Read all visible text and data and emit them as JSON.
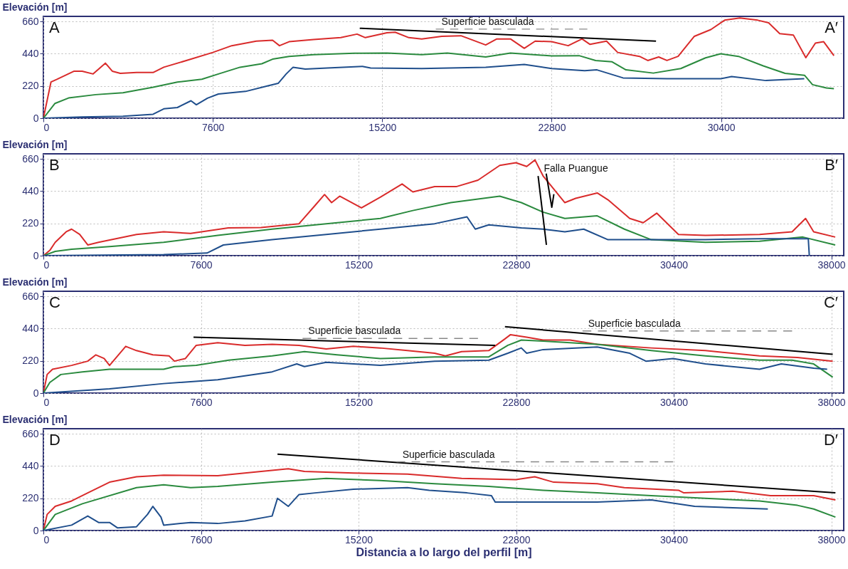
{
  "chart_data": [
    {
      "type": "line",
      "ylabel": "Elevación [m]",
      "xlim": [
        0,
        35900
      ],
      "xticks": [
        0,
        7600,
        15200,
        22800,
        30400
      ],
      "ylim": [
        0,
        695
      ],
      "yticks": [
        0,
        220,
        440,
        660
      ],
      "grid": true,
      "series": [
        {
          "color": "#d92b2b",
          "x": [
            0,
            340,
            590,
            1380,
            1740,
            2230,
            2780,
            3090,
            3450,
            4180,
            4920,
            5400,
            6620,
            7600,
            8450,
            9550,
            10280,
            10590,
            11020,
            12120,
            13340,
            14070,
            14440,
            15410,
            15780,
            16390,
            16970,
            17870,
            18730,
            19840,
            20340,
            20950,
            21570,
            22060,
            22800,
            23540,
            24160,
            24520,
            25260,
            25760,
            26740,
            27110,
            27600,
            27970,
            28470,
            29200,
            29940,
            30560,
            31240,
            32040,
            32530,
            33030,
            33640,
            34200,
            34630,
            35000,
            35460
          ],
          "values": [
            0,
            247,
            264,
            321,
            321,
            302,
            376,
            321,
            306,
            312,
            312,
            348,
            403,
            449,
            495,
            526,
            532,
            495,
            522,
            537,
            550,
            574,
            550,
            583,
            587,
            550,
            541,
            559,
            563,
            500,
            541,
            541,
            477,
            526,
            522,
            495,
            541,
            504,
            526,
            449,
            422,
            394,
            418,
            394,
            422,
            559,
            605,
            669,
            684,
            669,
            651,
            577,
            568,
            413,
            513,
            522,
            427
          ]
        },
        {
          "color": "#2a8a3e",
          "x": [
            0,
            520,
            1130,
            2350,
            3570,
            4920,
            6010,
            7110,
            7850,
            8820,
            9800,
            10280,
            11020,
            12120,
            13950,
            15410,
            16970,
            18120,
            19840,
            20950,
            22800,
            24030,
            24770,
            25510,
            26130,
            27360,
            28590,
            29700,
            30380,
            31180,
            32290,
            33270,
            34140,
            34500,
            35120,
            35460
          ],
          "values": [
            0,
            101,
            138,
            161,
            174,
            211,
            247,
            266,
            302,
            348,
            372,
            403,
            422,
            434,
            443,
            445,
            434,
            445,
            418,
            445,
            425,
            427,
            394,
            385,
            330,
            308,
            339,
            412,
            440,
            422,
            357,
            306,
            293,
            229,
            207,
            202
          ]
        },
        {
          "color": "#1f4e8c",
          "x": [
            0,
            1740,
            3570,
            4920,
            5400,
            6010,
            6620,
            6860,
            7360,
            7850,
            9070,
            10040,
            10530,
            10890,
            11200,
            11750,
            12730,
            14310,
            14680,
            16970,
            19840,
            21570,
            22800,
            24280,
            24830,
            26000,
            27970,
            30400,
            30870,
            32410,
            34130
          ],
          "values": [
            0,
            9,
            13,
            27,
            64,
            73,
            119,
            92,
            137,
            165,
            183,
            220,
            238,
            302,
            348,
            335,
            343,
            354,
            343,
            339,
            348,
            367,
            339,
            324,
            330,
            275,
            270,
            270,
            284,
            257,
            270
          ]
        },
        {
          "color": "#000000",
          "x": [
            14190,
            27480
          ],
          "values": [
            614,
            526
          ]
        },
        {
          "name": "Superficie basculada",
          "color": "#888888",
          "line_style": "dashed",
          "x": [
            17600,
            24400
          ],
          "values": [
            608,
            608
          ]
        }
      ],
      "annotations": [
        "A",
        "A′"
      ]
    },
    {
      "type": "line",
      "ylabel": "Elevación [m]",
      "xlim": [
        0,
        38600
      ],
      "xticks": [
        0,
        7600,
        15200,
        22800,
        30400,
        38000
      ],
      "ylim": [
        0,
        695
      ],
      "yticks": [
        0,
        220,
        440,
        660
      ],
      "grid": true,
      "series": [
        {
          "color": "#d92b2b",
          "x": [
            0,
            310,
            570,
            1100,
            1360,
            1750,
            2140,
            2660,
            4490,
            5800,
            7100,
            8920,
            10500,
            12330,
            13110,
            13560,
            13900,
            14290,
            15340,
            16250,
            17300,
            17820,
            18870,
            19910,
            20960,
            22010,
            22790,
            23310,
            23710,
            24100,
            25150,
            25670,
            26710,
            27230,
            28280,
            28930,
            29580,
            30630,
            31930,
            34540,
            36110,
            36760,
            37150,
            38190
          ],
          "values": [
            0,
            36,
            91,
            163,
            181,
            145,
            73,
            91,
            145,
            163,
            152,
            189,
            192,
            218,
            344,
            417,
            362,
            406,
            326,
            399,
            489,
            435,
            471,
            471,
            515,
            616,
            634,
            609,
            653,
            544,
            362,
            391,
            428,
            381,
            254,
            225,
            290,
            145,
            138,
            145,
            163,
            254,
            163,
            127
          ]
        },
        {
          "color": "#2a8a3e",
          "x": [
            0,
            570,
            1360,
            3190,
            5800,
            8410,
            11030,
            13640,
            16250,
            17820,
            19650,
            22010,
            23050,
            24100,
            25150,
            26710,
            28020,
            29320,
            31930,
            34540,
            36630,
            38190
          ],
          "values": [
            0,
            29,
            44,
            62,
            91,
            138,
            181,
            218,
            254,
            308,
            362,
            406,
            362,
            297,
            254,
            272,
            181,
            109,
            91,
            98,
            127,
            73
          ]
        },
        {
          "color": "#1f4e8c",
          "x": [
            0,
            5800,
            7890,
            8680,
            11030,
            13640,
            16250,
            18870,
            20430,
            20830,
            21480,
            23050,
            24100,
            25150,
            26060,
            27230,
            31930,
            34540,
            36890,
            36940
          ],
          "values": [
            0,
            7,
            18,
            73,
            109,
            145,
            181,
            218,
            265,
            181,
            210,
            189,
            181,
            163,
            181,
            109,
            109,
            116,
            116,
            0
          ]
        },
        {
          "name": "Falla Puangue",
          "color": "#000000",
          "x": [
            23860,
            24260
          ],
          "values": [
            544,
            73
          ]
        },
        {
          "color": "#000000",
          "x": [
            24250,
            24520,
            24620
          ],
          "values": [
            560,
            330,
            420
          ]
        }
      ],
      "annotations": [
        "B",
        "B′"
      ]
    },
    {
      "type": "line",
      "ylabel": "Elevación [m]",
      "xlim": [
        0,
        38600
      ],
      "xticks": [
        0,
        7600,
        15200,
        22800,
        30400,
        38000
      ],
      "ylim": [
        0,
        695
      ],
      "yticks": [
        0,
        220,
        440,
        660
      ],
      "grid": true,
      "series": [
        {
          "color": "#d92b2b",
          "x": [
            0,
            180,
            440,
            1360,
            2140,
            2530,
            2930,
            3190,
            3970,
            4490,
            5280,
            6060,
            6320,
            6850,
            7370,
            8410,
            9720,
            11030,
            12330,
            13640,
            14950,
            16250,
            17560,
            18870,
            19390,
            20170,
            21480,
            22260,
            22530,
            23310,
            24100,
            25400,
            26710,
            29320,
            31930,
            34540,
            36370,
            38070
          ],
          "values": [
            0,
            127,
            163,
            189,
            218,
            261,
            236,
            189,
            319,
            290,
            261,
            254,
            218,
            236,
            326,
            344,
            326,
            333,
            326,
            301,
            319,
            308,
            290,
            272,
            254,
            283,
            290,
            370,
            399,
            381,
            362,
            362,
            333,
            308,
            290,
            254,
            243,
            218
          ]
        },
        {
          "color": "#2a8a3e",
          "x": [
            0,
            310,
            840,
            1880,
            3190,
            4490,
            5800,
            6320,
            7370,
            8940,
            11030,
            12590,
            14160,
            16250,
            18870,
            21480,
            22400,
            23050,
            24100,
            26710,
            29320,
            31930,
            34540,
            36110,
            37150,
            38070
          ],
          "values": [
            0,
            73,
            127,
            145,
            163,
            163,
            163,
            181,
            189,
            225,
            254,
            283,
            261,
            236,
            247,
            247,
            326,
            362,
            355,
            333,
            290,
            254,
            225,
            225,
            199,
            109
          ]
        },
        {
          "color": "#1f4e8c",
          "x": [
            0,
            3190,
            5800,
            8410,
            11030,
            12220,
            12590,
            13640,
            16250,
            18870,
            21480,
            22400,
            23050,
            23310,
            24100,
            26710,
            28280,
            29060,
            30370,
            31930,
            34540,
            35590,
            37150,
            37800
          ],
          "values": [
            0,
            29,
            65,
            91,
            145,
            199,
            181,
            210,
            189,
            218,
            225,
            272,
            308,
            272,
            297,
            315,
            272,
            218,
            236,
            199,
            163,
            199,
            170,
            163
          ]
        },
        {
          "color": "#000000",
          "x": [
            7240,
            21790
          ],
          "values": [
            381,
            326
          ]
        },
        {
          "name": "Superficie basculada",
          "color": "#888888",
          "line_style": "dashed",
          "x": [
            12500,
            20960
          ],
          "values": [
            373,
            373
          ]
        },
        {
          "color": "#000000",
          "x": [
            22260,
            38070
          ],
          "values": [
            453,
            265
          ]
        },
        {
          "name": "Superficie basculada",
          "color": "#888888",
          "line_style": "dashed",
          "x": [
            26000,
            36110
          ],
          "values": [
            424,
            424
          ]
        }
      ],
      "annotations": [
        "C",
        "C′"
      ]
    },
    {
      "type": "line",
      "ylabel": "Elevación [m]",
      "xlabel": "Distancia a lo largo del perfil [m]",
      "xlim": [
        0,
        38600
      ],
      "xticks": [
        0,
        7600,
        15200,
        22800,
        30400,
        38000
      ],
      "ylim": [
        0,
        695
      ],
      "yticks": [
        0,
        220,
        440,
        660
      ],
      "grid": true,
      "series": [
        {
          "color": "#d92b2b",
          "x": [
            0,
            180,
            570,
            1360,
            2140,
            3190,
            4490,
            5800,
            8410,
            10500,
            11810,
            12590,
            14950,
            17560,
            20170,
            22790,
            23700,
            24610,
            26710,
            28020,
            30630,
            30890,
            33240,
            35070,
            37150,
            38200
          ],
          "values": [
            0,
            110,
            165,
            202,
            257,
            330,
            367,
            378,
            374,
            403,
            422,
            403,
            392,
            385,
            356,
            348,
            367,
            330,
            319,
            293,
            275,
            257,
            268,
            238,
            238,
            209
          ]
        },
        {
          "color": "#2a8a3e",
          "x": [
            0,
            570,
            1880,
            4490,
            5800,
            7100,
            8410,
            11030,
            13640,
            16250,
            18870,
            21480,
            24100,
            26710,
            29320,
            31930,
            34540,
            36370,
            37150,
            38200
          ],
          "values": [
            0,
            110,
            183,
            293,
            312,
            293,
            301,
            330,
            356,
            341,
            319,
            301,
            275,
            257,
            238,
            220,
            202,
            172,
            147,
            92
          ]
        },
        {
          "color": "#1f4e8c",
          "x": [
            0,
            1360,
            2140,
            2660,
            3190,
            3580,
            4490,
            5020,
            5280,
            5670,
            5800,
            7100,
            8410,
            9720,
            11030,
            11290,
            11810,
            12330,
            13110,
            14950,
            17560,
            18610,
            20430,
            21610,
            21790,
            24100,
            26710,
            29320,
            31410,
            34940
          ],
          "values": [
            0,
            37,
            99,
            55,
            55,
            18,
            26,
            110,
            165,
            92,
            37,
            55,
            48,
            66,
            99,
            220,
            165,
            246,
            257,
            282,
            293,
            275,
            257,
            238,
            194,
            194,
            194,
            209,
            165,
            147
          ]
        },
        {
          "color": "#000000",
          "x": [
            11290,
            38200
          ],
          "values": [
            521,
            257
          ]
        },
        {
          "name": "Superficie basculada",
          "color": "#888888",
          "line_style": "dashed",
          "x": [
            17040,
            30370
          ],
          "values": [
            469,
            469
          ]
        }
      ],
      "annotations": [
        "D",
        "D′"
      ]
    }
  ]
}
